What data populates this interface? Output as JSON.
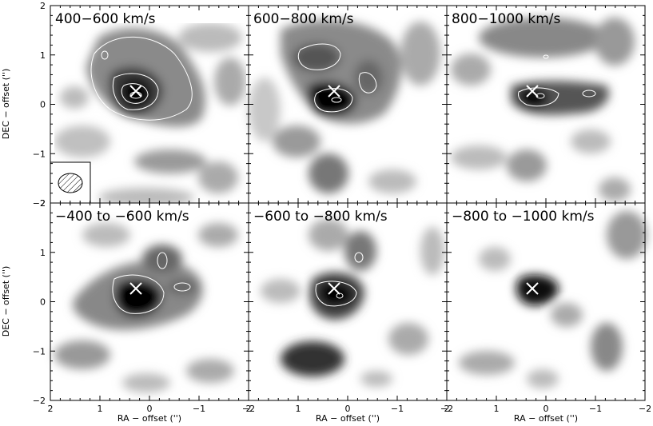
{
  "figure": {
    "panels": [
      {
        "label": "400−600 km/s"
      },
      {
        "label": "600−800 km/s"
      },
      {
        "label": "800−1000 km/s"
      },
      {
        "label": "−400 to −600 km/s"
      },
      {
        "label": "−600 to −800 km/s"
      },
      {
        "label": "−800 to −1000 km/s"
      }
    ],
    "x_axis_title": "RA − offset ('')",
    "y_axis_title": "DEC − offset ('')",
    "x_ticks": [
      "2",
      "1",
      "0",
      "−1",
      "−2"
    ],
    "y_ticks": [
      "2",
      "1",
      "0",
      "−1",
      "−2"
    ],
    "x_tick_values": [
      2,
      1,
      0,
      -1,
      -2
    ],
    "y_tick_values": [
      2,
      1,
      0,
      -1,
      -2
    ],
    "x_range": [
      2,
      -2
    ],
    "y_range": [
      -2,
      2
    ],
    "marker_icon": "x-cross-icon",
    "beam_icon": "hatched-ellipse-icon"
  }
}
